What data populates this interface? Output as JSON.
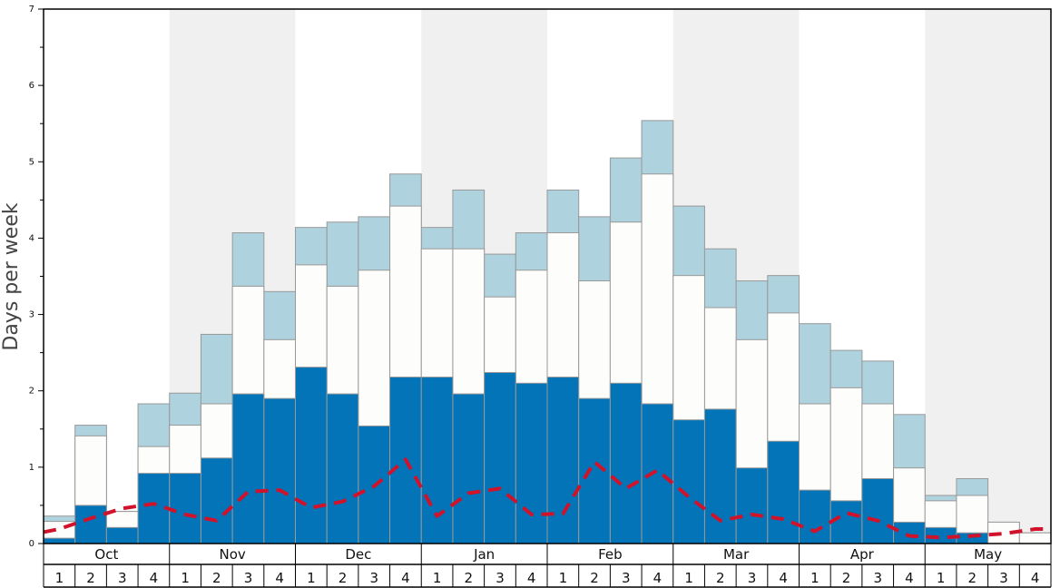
{
  "chart_data": {
    "type": "bar",
    "ylabel": "Days per week",
    "ylim": [
      0,
      7
    ],
    "y_ticks": [
      "0",
      "1",
      "2",
      "3",
      "4",
      "5",
      "6",
      "7"
    ],
    "months": [
      "Oct",
      "Nov",
      "Dec",
      "Jan",
      "Feb",
      "Mar",
      "Apr",
      "May"
    ],
    "week_labels": [
      "1",
      "2",
      "3",
      "4",
      "1",
      "2",
      "3",
      "4",
      "1",
      "2",
      "3",
      "4",
      "1",
      "2",
      "3",
      "4",
      "1",
      "2",
      "3",
      "4",
      "1",
      "2",
      "3",
      "4",
      "1",
      "2",
      "3",
      "4",
      "1",
      "2",
      "3",
      "4"
    ],
    "series": [
      {
        "values": [
          0.07,
          0.5,
          0.21,
          0.92,
          0.92,
          1.12,
          1.96,
          1.9,
          2.31,
          1.96,
          1.54,
          2.18,
          2.18,
          1.96,
          2.24,
          2.1,
          2.18,
          1.9,
          2.1,
          1.83,
          1.62,
          1.76,
          0.99,
          1.34,
          0.7,
          0.56,
          0.85,
          0.28,
          0.21,
          0.14,
          0.0,
          0.0
        ]
      },
      {
        "values": [
          0.29,
          1.41,
          0.42,
          1.27,
          1.55,
          1.83,
          3.37,
          2.67,
          3.65,
          3.37,
          3.58,
          4.42,
          3.86,
          3.86,
          3.23,
          3.58,
          4.07,
          3.44,
          4.21,
          4.84,
          3.51,
          3.09,
          2.67,
          3.02,
          1.83,
          2.04,
          1.83,
          0.99,
          0.56,
          0.63,
          0.28,
          0.14
        ]
      },
      {
        "values": [
          0.36,
          1.55,
          0.42,
          1.83,
          1.97,
          2.74,
          4.07,
          3.3,
          4.14,
          4.21,
          4.28,
          4.84,
          4.14,
          4.63,
          3.79,
          4.07,
          4.63,
          4.28,
          5.05,
          5.54,
          4.42,
          3.86,
          3.44,
          3.51,
          2.88,
          2.53,
          2.39,
          1.69,
          0.63,
          0.85,
          0.28,
          0.14
        ]
      },
      {
        "type": "line",
        "values": [
          0.19,
          0.33,
          0.46,
          0.52,
          0.38,
          0.3,
          0.68,
          0.7,
          0.47,
          0.55,
          0.75,
          1.1,
          0.36,
          0.66,
          0.72,
          0.38,
          0.39,
          1.07,
          0.72,
          0.96,
          0.61,
          0.3,
          0.38,
          0.32,
          0.16,
          0.4,
          0.3,
          0.1,
          0.08,
          0.1,
          0.13,
          0.19
        ]
      }
    ],
    "colors": {
      "bar_low": "#0274b7",
      "bar_mid": "#fdfdfb",
      "bar_high": "#aed2de",
      "line": "#d0122a",
      "band": "#f0f0f0",
      "bar_edge": "#999999"
    }
  }
}
